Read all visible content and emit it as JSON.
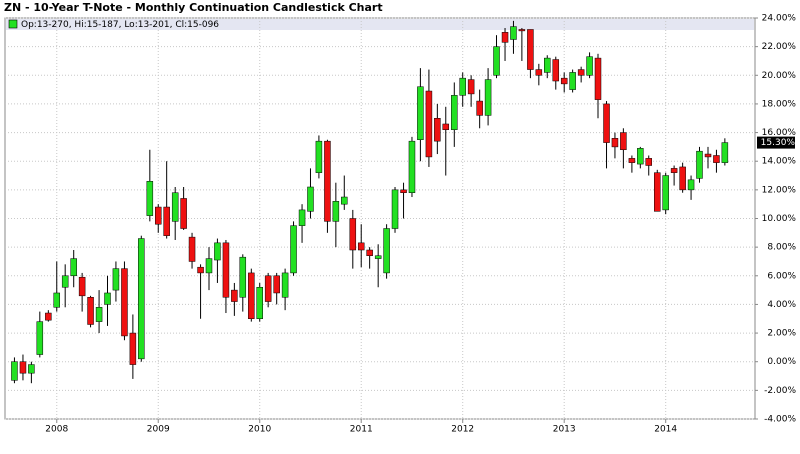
{
  "chart_data": {
    "type": "candlestick",
    "title": "ZN - 10-Year T-Note - Monthly Continuation Candlestick Chart",
    "legend_text": "Op:13-270, Hi:15-187, Lo:13-201, Cl:15-096",
    "last_price_label": "15.30%",
    "up_color": "#22e022",
    "down_color": "#ee1111",
    "grid": true,
    "xlim": [
      2007.49,
      2014.88
    ],
    "xticks": [
      2008,
      2009,
      2010,
      2011,
      2012,
      2013,
      2014
    ],
    "ylim": [
      -4,
      24
    ],
    "yticks": [
      {
        "value": -4,
        "label": "-4.00%"
      },
      {
        "value": -2,
        "label": "-2.00%"
      },
      {
        "value": 0,
        "label": "0.00%"
      },
      {
        "value": 2,
        "label": "2.00%"
      },
      {
        "value": 4,
        "label": "4.00%"
      },
      {
        "value": 6,
        "label": "6.00%"
      },
      {
        "value": 8,
        "label": "8.00%"
      },
      {
        "value": 10,
        "label": "10.00%"
      },
      {
        "value": 12,
        "label": "12.00%"
      },
      {
        "value": 14,
        "label": "14.00%"
      },
      {
        "value": 16,
        "label": "16.00%"
      },
      {
        "value": 18,
        "label": "18.00%"
      },
      {
        "value": 20,
        "label": "20.00%"
      },
      {
        "value": 22,
        "label": "22.00%"
      },
      {
        "value": 24,
        "label": "24.00%"
      }
    ],
    "x": [
      2007.583,
      2007.667,
      2007.75,
      2007.833,
      2007.917,
      2008.0,
      2008.083,
      2008.167,
      2008.25,
      2008.333,
      2008.417,
      2008.5,
      2008.583,
      2008.667,
      2008.75,
      2008.833,
      2008.917,
      2009.0,
      2009.083,
      2009.167,
      2009.25,
      2009.333,
      2009.417,
      2009.5,
      2009.583,
      2009.667,
      2009.75,
      2009.833,
      2009.917,
      2010.0,
      2010.083,
      2010.167,
      2010.25,
      2010.333,
      2010.417,
      2010.5,
      2010.583,
      2010.667,
      2010.75,
      2010.833,
      2010.917,
      2011.0,
      2011.083,
      2011.167,
      2011.25,
      2011.333,
      2011.417,
      2011.5,
      2011.583,
      2011.667,
      2011.75,
      2011.833,
      2011.917,
      2012.0,
      2012.083,
      2012.167,
      2012.25,
      2012.333,
      2012.417,
      2012.5,
      2012.583,
      2012.667,
      2012.75,
      2012.833,
      2012.917,
      2013.0,
      2013.083,
      2013.167,
      2013.25,
      2013.333,
      2013.417,
      2013.5,
      2013.583,
      2013.667,
      2013.75,
      2013.833,
      2013.917,
      2014.0,
      2014.083,
      2014.167,
      2014.25,
      2014.333,
      2014.417,
      2014.5,
      2014.583
    ],
    "open": [
      -1.3,
      0.0,
      -0.8,
      0.5,
      3.4,
      3.8,
      5.2,
      6.0,
      5.9,
      4.5,
      2.8,
      4.0,
      5.0,
      6.5,
      2.0,
      0.2,
      10.2,
      10.8,
      10.8,
      9.8,
      11.4,
      8.7,
      6.6,
      6.2,
      7.1,
      8.3,
      5.0,
      4.5,
      6.2,
      3.0,
      6.0,
      6.0,
      4.5,
      6.2,
      9.5,
      10.5,
      13.2,
      15.4,
      9.8,
      11.0,
      10.0,
      8.3,
      7.8,
      7.2,
      6.2,
      9.3,
      12.0,
      11.8,
      15.5,
      18.9,
      17.0,
      16.6,
      16.2,
      18.6,
      19.7,
      18.2,
      17.2,
      20.0,
      23.0,
      22.5,
      23.2,
      23.2,
      20.4,
      20.2,
      21.1,
      19.8,
      19.0,
      20.4,
      20.0,
      21.2,
      18.0,
      15.6,
      16.0,
      14.2,
      13.8,
      14.2,
      13.2,
      10.6,
      13.5,
      13.6,
      12.0,
      12.8,
      14.5,
      14.4,
      13.9
    ],
    "high": [
      0.3,
      0.5,
      0.0,
      3.5,
      3.6,
      7.0,
      6.8,
      7.8,
      6.2,
      4.6,
      5.0,
      6.0,
      7.0,
      7.0,
      3.3,
      8.8,
      14.8,
      11.0,
      14.0,
      12.2,
      12.2,
      9.0,
      6.8,
      8.0,
      8.6,
      8.5,
      5.5,
      7.5,
      6.5,
      5.5,
      6.2,
      6.2,
      6.5,
      9.8,
      11.0,
      13.5,
      15.8,
      15.5,
      12.5,
      13.0,
      10.6,
      9.6,
      8.0,
      8.2,
      9.6,
      12.2,
      12.5,
      15.7,
      20.5,
      20.4,
      18.0,
      17.8,
      19.5,
      20.2,
      20.0,
      19.0,
      20.5,
      22.8,
      23.3,
      23.8,
      23.3,
      23.2,
      20.8,
      21.4,
      21.3,
      20.2,
      20.4,
      20.6,
      21.6,
      21.5,
      18.2,
      16.0,
      16.3,
      14.4,
      15.0,
      14.4,
      13.4,
      13.2,
      13.7,
      13.9,
      13.0,
      15.0,
      15.0,
      14.8,
      15.6
    ],
    "low": [
      -1.5,
      -1.3,
      -1.5,
      0.3,
      2.8,
      3.5,
      3.8,
      5.2,
      3.5,
      2.4,
      2.0,
      2.5,
      4.2,
      1.5,
      -1.2,
      0.0,
      9.8,
      9.0,
      8.6,
      8.5,
      9.2,
      6.5,
      3.0,
      5.0,
      5.5,
      3.4,
      3.2,
      3.5,
      2.8,
      2.8,
      3.8,
      4.0,
      3.6,
      6.0,
      8.3,
      10.0,
      12.8,
      9.0,
      8.0,
      10.6,
      6.5,
      6.6,
      6.5,
      5.2,
      5.8,
      9.0,
      10.0,
      11.5,
      14.0,
      13.6,
      14.5,
      13.0,
      15.0,
      17.8,
      17.8,
      16.3,
      16.5,
      19.8,
      21.0,
      21.5,
      21.0,
      19.8,
      19.3,
      19.8,
      19.0,
      18.8,
      18.8,
      19.5,
      19.8,
      17.0,
      13.5,
      14.2,
      13.5,
      13.2,
      13.5,
      13.0,
      10.5,
      10.3,
      12.3,
      11.8,
      11.3,
      12.5,
      13.5,
      13.2,
      13.7
    ],
    "close": [
      0.0,
      -0.8,
      -0.2,
      2.8,
      2.9,
      4.8,
      6.0,
      7.2,
      4.6,
      2.6,
      3.8,
      4.8,
      6.5,
      1.8,
      -0.2,
      8.6,
      12.6,
      9.6,
      8.8,
      11.8,
      9.3,
      7.0,
      6.2,
      7.2,
      8.3,
      4.5,
      4.2,
      7.3,
      3.0,
      5.2,
      4.2,
      4.8,
      6.2,
      9.5,
      10.6,
      12.2,
      15.4,
      9.8,
      11.2,
      11.5,
      7.8,
      7.8,
      7.4,
      7.4,
      9.3,
      12.0,
      11.8,
      15.4,
      19.2,
      14.3,
      15.4,
      16.2,
      18.6,
      19.8,
      18.7,
      17.2,
      19.7,
      22.0,
      22.3,
      23.4,
      23.1,
      20.4,
      20.0,
      21.2,
      19.6,
      19.4,
      20.2,
      20.0,
      21.3,
      18.3,
      15.3,
      15.0,
      14.8,
      13.9,
      14.9,
      13.7,
      10.5,
      13.0,
      13.2,
      12.0,
      12.7,
      14.7,
      14.3,
      13.9,
      15.3
    ]
  }
}
